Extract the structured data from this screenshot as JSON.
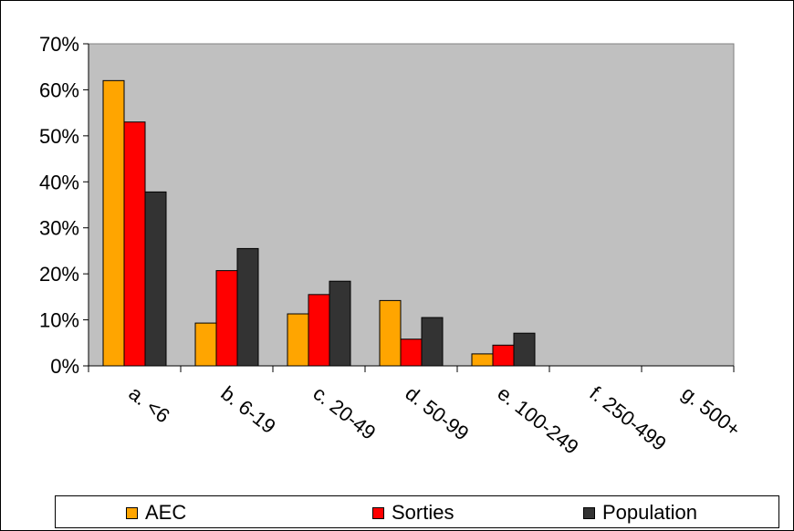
{
  "chart_data": {
    "type": "bar",
    "categories": [
      "a.  <6",
      "b.  6-19",
      "c.  20-49",
      "d.  50-99",
      "e.  100-249",
      "f.  250-499",
      "g.  500+"
    ],
    "series": [
      {
        "name": "AEC",
        "color": "#FFA500",
        "values": [
          62,
          9.3,
          11.3,
          14.2,
          2.6,
          0,
          0
        ]
      },
      {
        "name": "Sorties",
        "color": "#FF0000",
        "values": [
          53,
          20.7,
          15.5,
          5.8,
          4.5,
          0,
          0
        ]
      },
      {
        "name": "Population",
        "color": "#333333",
        "values": [
          37.8,
          25.5,
          18.4,
          10.5,
          7.1,
          0,
          0
        ]
      }
    ],
    "ylim": [
      0,
      70
    ],
    "yticks": [
      "0%",
      "10%",
      "20%",
      "30%",
      "40%",
      "50%",
      "60%",
      "70%"
    ],
    "plot_background": "#C0C0C0",
    "legend_position": "bottom",
    "grid": false
  }
}
